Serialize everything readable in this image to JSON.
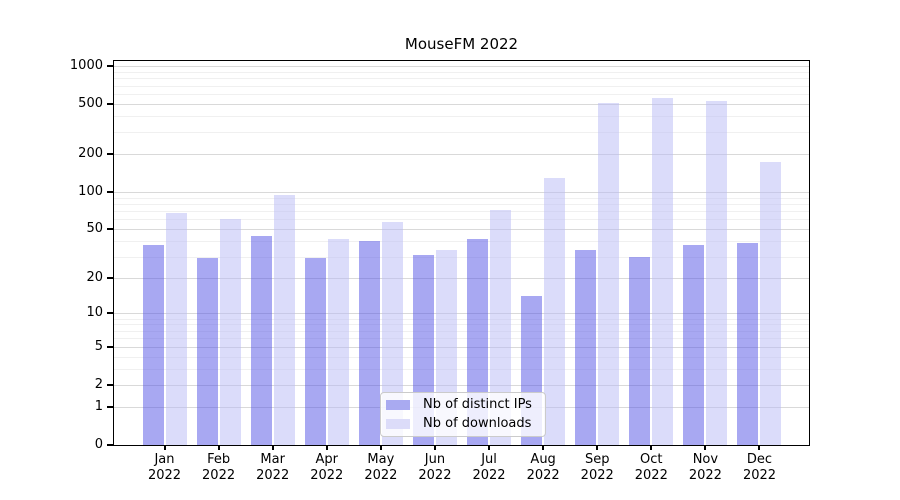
{
  "title": "MouseFM 2022",
  "colors": {
    "ips_bar": "rgba(81,82,229,0.5)",
    "downloads_bar": "rgba(183,185,245,0.5)",
    "ips_swatch": "#a9aaf1",
    "downloads_swatch": "#dcdcf9",
    "major_grid": "#d9d9d9",
    "minor_grid": "#f0f0f0",
    "axis": "#000000"
  },
  "chart_data": {
    "type": "bar",
    "title": "MouseFM 2022",
    "xlabel": "",
    "ylabel": "",
    "grid": "on",
    "categories": [
      "Jan",
      "Feb",
      "Mar",
      "Apr",
      "May",
      "Jun",
      "Jul",
      "Aug",
      "Sep",
      "Oct",
      "Nov",
      "Dec"
    ],
    "x_tick_second_line": "2022",
    "series": [
      {
        "name": "Nb of distinct IPs",
        "color": "rgba(81,82,229,0.5)",
        "values": [
          37,
          29,
          44,
          29,
          40,
          31,
          42,
          14,
          34,
          30,
          37,
          39
        ]
      },
      {
        "name": "Nb of downloads",
        "color": "rgba(183,185,245,0.5)",
        "values": [
          68,
          60,
          95,
          42,
          57,
          34,
          72,
          130,
          512,
          556,
          531,
          173
        ]
      }
    ],
    "y_axis": {
      "scale": "symlog",
      "tick_values": [
        0,
        1,
        2,
        5,
        10,
        20,
        50,
        100,
        200,
        500,
        1000
      ],
      "tick_labels": [
        "0",
        "1",
        "2",
        "5",
        "10",
        "20",
        "50",
        "100",
        "200",
        "500",
        "1000"
      ],
      "minor_tick_values": [
        3,
        4,
        6,
        7,
        8,
        9,
        30,
        40,
        60,
        70,
        80,
        90,
        300,
        400,
        600,
        700,
        800,
        900
      ],
      "top_value": 1100
    },
    "legend": {
      "position": "lower center",
      "entries": [
        "Nb of distinct IPs",
        "Nb of downloads"
      ]
    }
  }
}
